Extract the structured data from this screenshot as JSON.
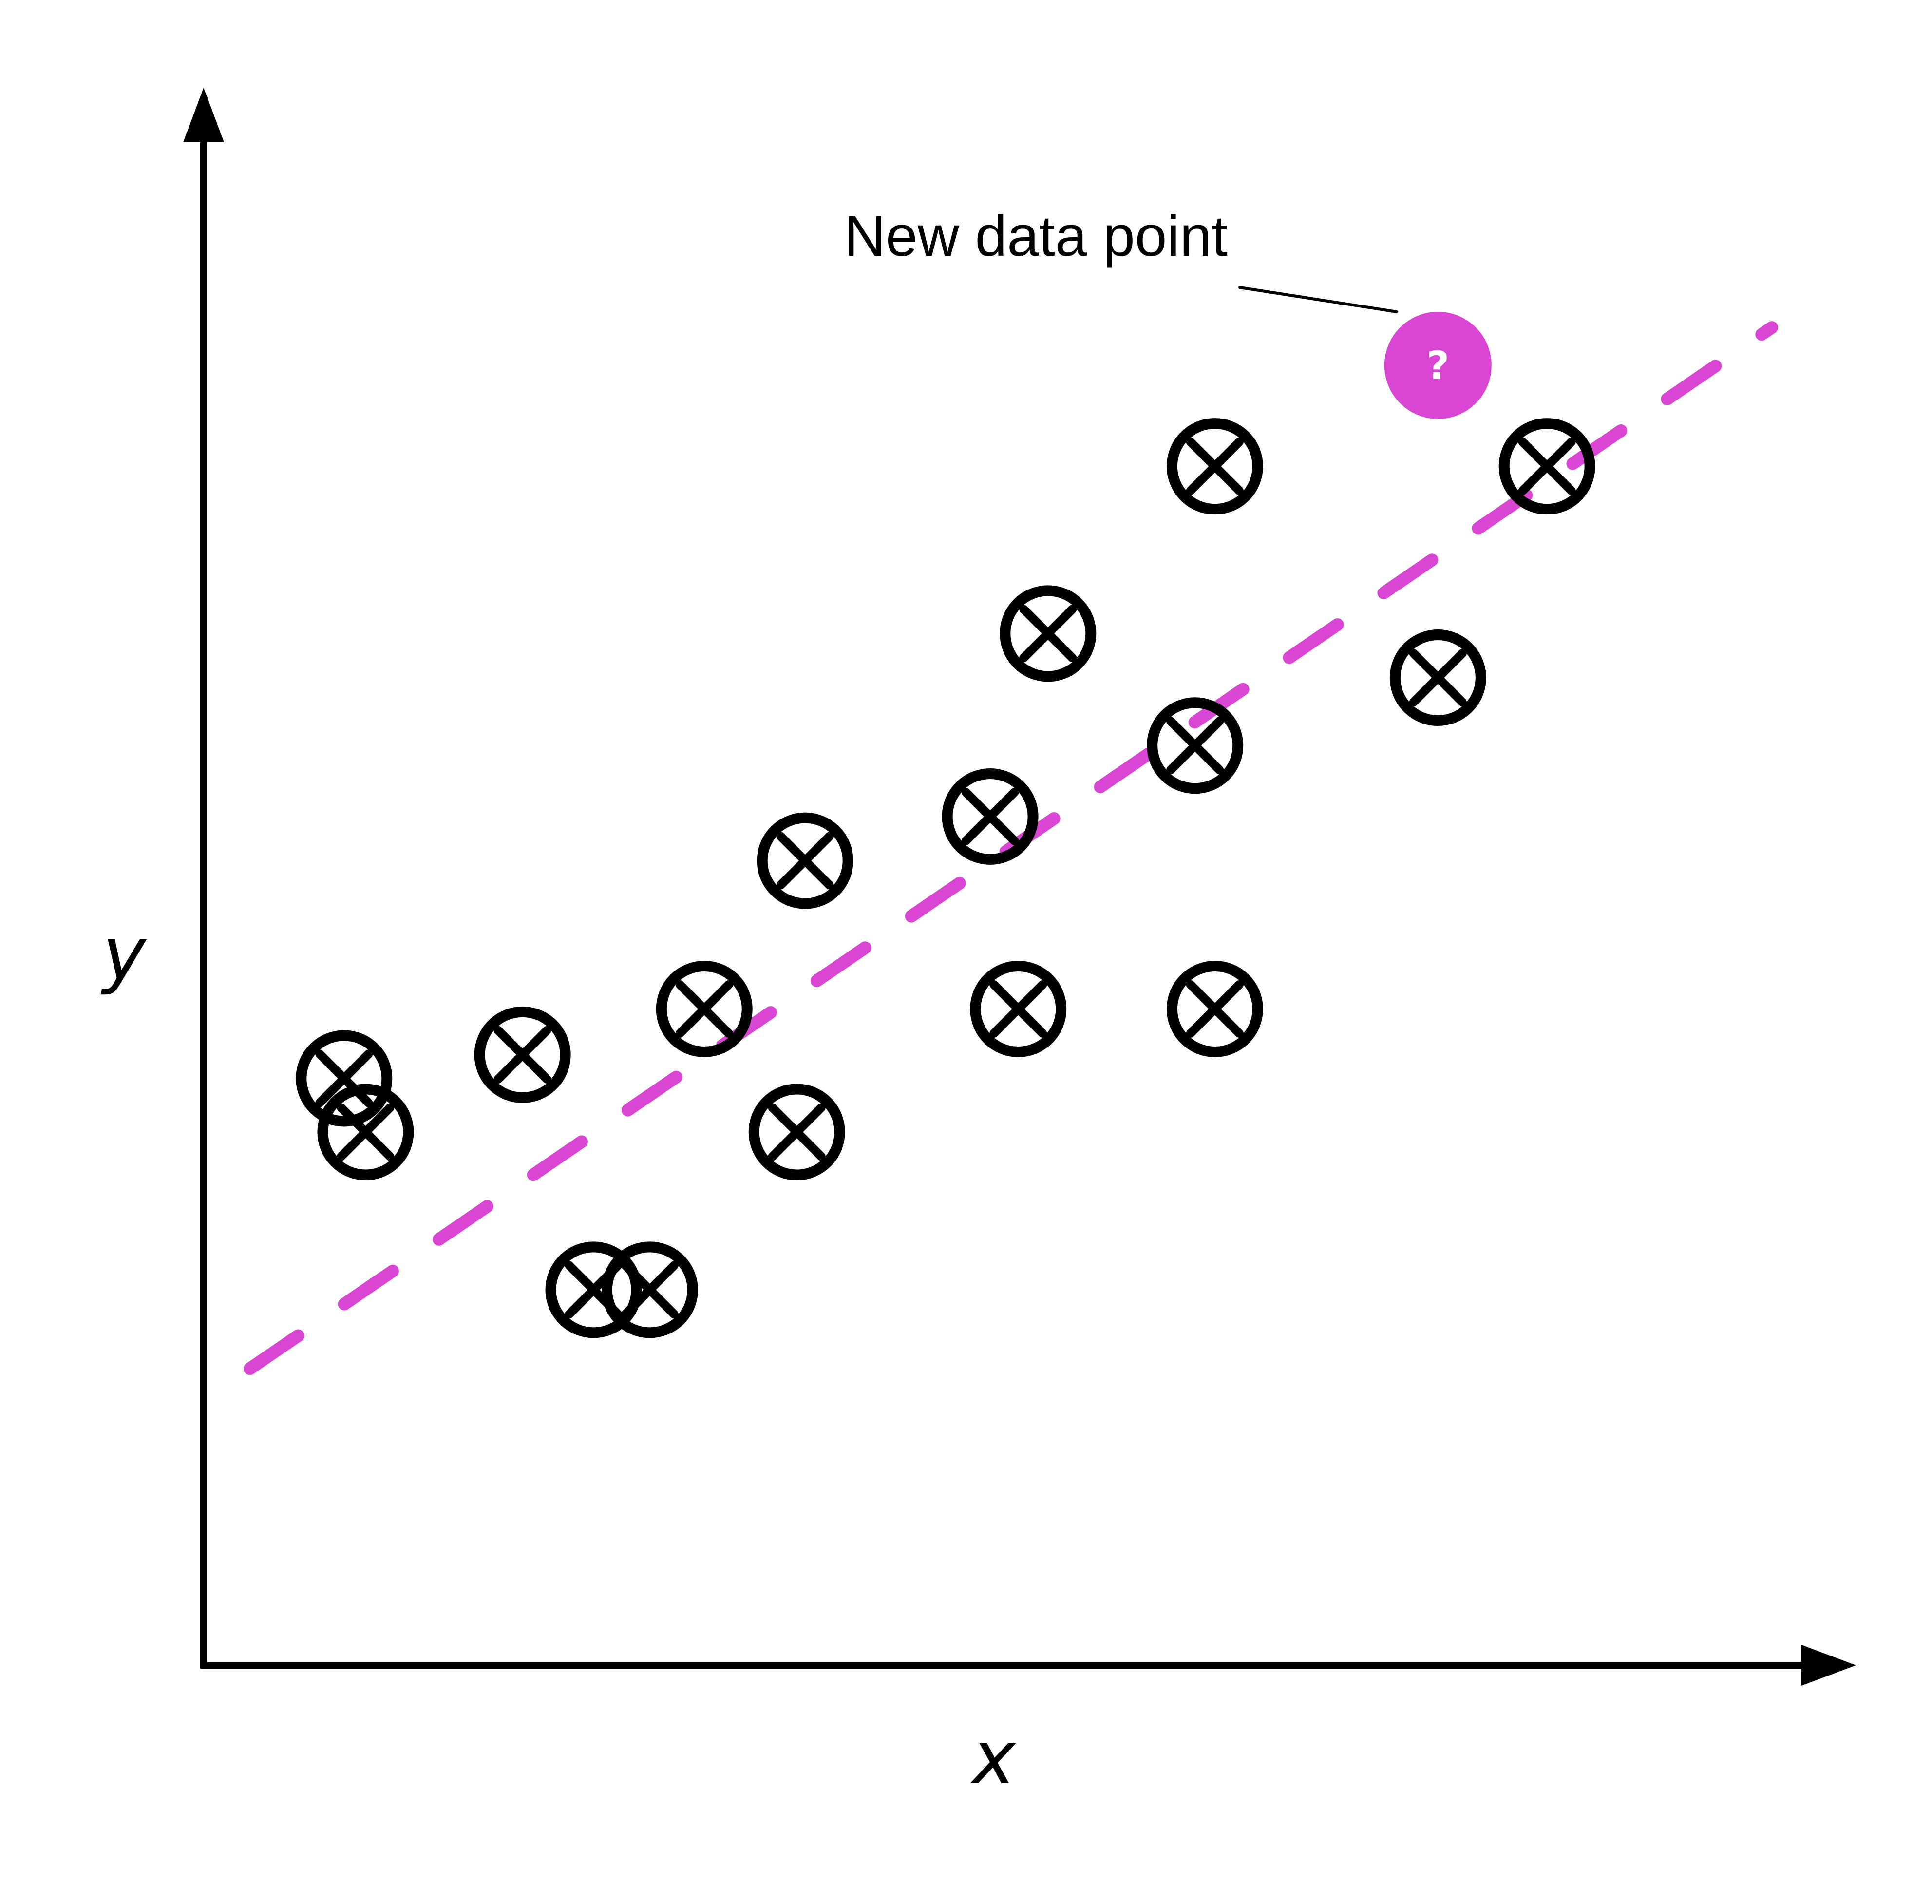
{
  "chart_data": {
    "type": "scatter",
    "title": "",
    "xlabel": "x",
    "ylabel": "y",
    "xlim": [
      0,
      10
    ],
    "ylim": [
      0,
      10
    ],
    "grid": false,
    "series": [
      {
        "marker": "circled-x",
        "color": "#000000",
        "points": [
          {
            "x": 0.98,
            "y": 3.38
          },
          {
            "x": 0.85,
            "y": 3.72
          },
          {
            "x": 1.93,
            "y": 3.87
          },
          {
            "x": 2.36,
            "y": 2.38
          },
          {
            "x": 3.03,
            "y": 4.16
          },
          {
            "x": 3.59,
            "y": 3.38
          },
          {
            "x": 2.7,
            "y": 2.38
          },
          {
            "x": 3.64,
            "y": 5.1
          },
          {
            "x": 4.93,
            "y": 4.16
          },
          {
            "x": 4.76,
            "y": 5.38
          },
          {
            "x": 5.11,
            "y": 6.54
          },
          {
            "x": 6.0,
            "y": 5.83
          },
          {
            "x": 6.12,
            "y": 7.6
          },
          {
            "x": 6.12,
            "y": 4.16
          },
          {
            "x": 7.47,
            "y": 6.26
          },
          {
            "x": 8.13,
            "y": 7.6
          }
        ]
      }
    ],
    "trend_line": {
      "color": "#d946d4",
      "style": "dashed",
      "x": [
        0.28,
        9.49
      ],
      "y": [
        1.88,
        8.48
      ]
    },
    "new_point": {
      "x": 7.47,
      "y": 8.24,
      "color": "#d946d4",
      "symbol": "?"
    },
    "annotations": [
      {
        "text": "New data point",
        "target": "new_point"
      }
    ]
  }
}
